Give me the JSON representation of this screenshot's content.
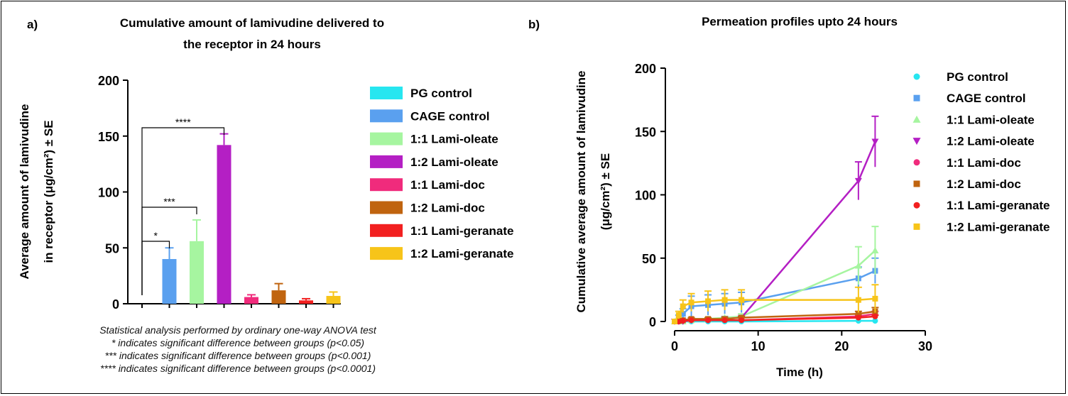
{
  "panel_a": {
    "label": "a)",
    "title_lines": [
      "Cumulative amount of lamivudine delivered to",
      "the receptor in 24 hours"
    ],
    "ylabel_lines": [
      "Average amount of lamivudine",
      "in receptor (μg/cm²) ± SE"
    ],
    "significance": [
      "*",
      "***",
      "****"
    ],
    "notes": [
      "Statistical analysis performed by ordinary one-way ANOVA test",
      "* indicates significant difference between groups (p<0.05)",
      "*** indicates significant difference between groups (p<0.001)",
      "**** indicates significant difference between groups (p<0.0001)"
    ]
  },
  "panel_b": {
    "label": "b)",
    "title": "Permeation profiles upto 24 hours",
    "ylabel_lines": [
      "Cumulative average amount of lamivudine",
      "(μg/cm²) ± SE"
    ],
    "xlabel": "Time (h)"
  },
  "chart_data": [
    {
      "type": "bar",
      "title": "Cumulative amount of lamivudine delivered to the receptor in 24 hours",
      "xlabel": "",
      "ylabel": "Average amount of lamivudine in receptor (μg/cm²) ± SE",
      "ylim": [
        0,
        200
      ],
      "yticks": [
        0,
        50,
        100,
        150,
        200
      ],
      "categories": [
        "PG control",
        "CAGE control",
        "1:1 Lami-oleate",
        "1:2 Lami-oleate",
        "1:1 Lami-doc",
        "1:2 Lami-doc",
        "1:1 Lami-geranate",
        "1:2 Lami-geranate"
      ],
      "values": [
        0.5,
        40,
        56,
        142,
        6,
        12,
        3,
        7
      ],
      "errors": [
        0.5,
        10,
        19,
        10,
        2,
        6,
        1.5,
        3.5
      ],
      "colors": [
        "#27e6f0",
        "#5aa0ef",
        "#a6f5a0",
        "#b41fc4",
        "#f02b7c",
        "#c0640f",
        "#f22020",
        "#f7c419"
      ],
      "legend": [
        "PG control",
        "CAGE control",
        "1:1 Lami-oleate",
        "1:2 Lami-oleate",
        "1:1 Lami-doc",
        "1:2 Lami-doc",
        "1:1 Lami-geranate",
        "1:2 Lami-geranate"
      ],
      "legend_position": "right",
      "grid": false,
      "comparisons": [
        {
          "from": "PG control",
          "to": "CAGE control",
          "label": "*"
        },
        {
          "from": "PG control",
          "to": "1:1 Lami-oleate",
          "label": "***"
        },
        {
          "from": "PG control",
          "to": "1:2 Lami-oleate",
          "label": "****"
        }
      ]
    },
    {
      "type": "line",
      "title": "Permeation profiles upto 24 hours",
      "xlabel": "Time (h)",
      "ylabel": "Cumulative average amount of lamivudine (μg/cm²) ± SE",
      "xlim": [
        0,
        30
      ],
      "ylim": [
        0,
        200
      ],
      "xticks": [
        0,
        10,
        20,
        30
      ],
      "yticks": [
        0,
        50,
        100,
        150,
        200
      ],
      "x": [
        0,
        0.5,
        1,
        2,
        4,
        6,
        8,
        22,
        24
      ],
      "series": [
        {
          "name": "PG control",
          "marker": "circle",
          "color": "#27e6f0",
          "values": [
            0,
            0,
            0,
            0,
            0,
            0,
            0,
            0.5,
            0.5
          ],
          "errors": [
            0,
            0,
            0,
            0,
            0,
            0,
            0,
            0,
            0
          ]
        },
        {
          "name": "CAGE control",
          "marker": "square",
          "color": "#5aa0ef",
          "values": [
            0,
            3,
            6,
            12,
            13,
            14,
            15,
            34,
            40
          ],
          "errors": [
            0,
            2,
            4,
            8,
            8,
            8,
            8,
            9,
            10
          ]
        },
        {
          "name": "1:1 Lami-oleate",
          "marker": "triangle-up",
          "color": "#a6f5a0",
          "values": [
            0,
            0,
            0,
            1,
            2,
            3,
            4,
            44,
            56
          ],
          "errors": [
            0,
            0,
            0,
            1,
            1,
            1,
            2,
            15,
            19
          ]
        },
        {
          "name": "1:2 Lami-oleate",
          "marker": "triangle-down",
          "color": "#b41fc4",
          "values": [
            0,
            0,
            0,
            1,
            1,
            2,
            3,
            111,
            142
          ],
          "errors": [
            0,
            0,
            0,
            0,
            0,
            1,
            1,
            15,
            20
          ]
        },
        {
          "name": "1:1 Lami-doc",
          "marker": "circle",
          "color": "#f02b7c",
          "values": [
            0,
            0,
            0.5,
            1,
            1,
            1,
            1,
            4,
            6
          ],
          "errors": [
            0,
            0,
            0,
            0,
            0,
            0,
            0,
            1,
            2
          ]
        },
        {
          "name": "1:2 Lami-doc",
          "marker": "square",
          "color": "#c0640f",
          "values": [
            0,
            0.5,
            1,
            2,
            2,
            2,
            3,
            6,
            8
          ],
          "errors": [
            0,
            0,
            0,
            1,
            1,
            1,
            1,
            2,
            3
          ]
        },
        {
          "name": "1:1 Lami-geranate",
          "marker": "circle",
          "color": "#f22020",
          "values": [
            0,
            0,
            0.5,
            1,
            1,
            1,
            1,
            3,
            4
          ],
          "errors": [
            0,
            0,
            0,
            0,
            0,
            0,
            0,
            1,
            1
          ]
        },
        {
          "name": "1:2 Lami-geranate",
          "marker": "square",
          "color": "#f7c419",
          "values": [
            0,
            5,
            12,
            15,
            16,
            17,
            17,
            17,
            18
          ],
          "errors": [
            0,
            3,
            5,
            7,
            8,
            8,
            8,
            10,
            11
          ]
        }
      ],
      "legend": [
        "PG control",
        "CAGE control",
        "1:1 Lami-oleate",
        "1:2 Lami-oleate",
        "1:1 Lami-doc",
        "1:2 Lami-doc",
        "1:1 Lami-geranate",
        "1:2 Lami-geranate"
      ],
      "legend_position": "right",
      "grid": false
    }
  ]
}
